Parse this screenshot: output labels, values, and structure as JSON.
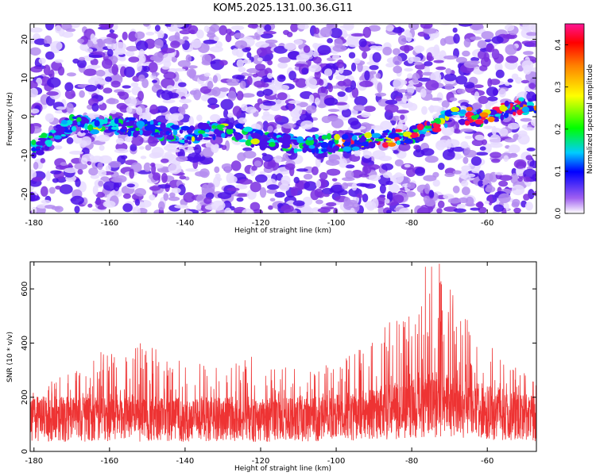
{
  "chart_data": [
    {
      "type": "heatmap",
      "title": "KOM5.2025.131.00.36.G11",
      "xlabel": "Height of straight line (km)",
      "ylabel": "Frequency (Hz)",
      "xlim": [
        -181,
        -47
      ],
      "ylim": [
        -25,
        24
      ],
      "xticks": [
        -180,
        -160,
        -140,
        -120,
        -100,
        -80,
        -60
      ],
      "xtick_labels": [
        "-180",
        "-160",
        "-140",
        "-120",
        "-100",
        "-80",
        "-60"
      ],
      "yticks": [
        -20,
        -10,
        0,
        10,
        20
      ],
      "ytick_labels": [
        "-20",
        "-10",
        "0",
        "10",
        "20"
      ],
      "colorbar": {
        "label": "Normalized spectral amplitude",
        "range": [
          0,
          0.45
        ],
        "ticks": [
          0,
          0.1,
          0.2,
          0.3,
          0.4
        ],
        "tick_labels": [
          "0.0",
          "0.1",
          "0.2",
          "0.3",
          "0.4"
        ],
        "colormap": [
          "#ffffff",
          "#8a2be2",
          "#0000ff",
          "#00ffff",
          "#00ff00",
          "#ffff00",
          "#ff8000",
          "#ff0000",
          "#ff1493"
        ]
      },
      "ridge": {
        "description_points_x": [
          -181,
          -170,
          -160,
          -150,
          -140,
          -130,
          -120,
          -110,
          -100,
          -90,
          -80,
          -70,
          -60,
          -50
        ],
        "description_points_y": [
          -9,
          -2,
          -2,
          -3,
          -5,
          -3,
          -6,
          -7,
          -7,
          -6,
          -5,
          0,
          0,
          3
        ],
        "peak_amplitude": 0.44
      }
    },
    {
      "type": "line",
      "xlabel": "Height of straight line (km)",
      "ylabel": "SNR (10 * v/v)",
      "xlim": [
        -181,
        -47
      ],
      "ylim": [
        0,
        700
      ],
      "xticks": [
        -180,
        -160,
        -140,
        -120,
        -100,
        -80,
        -60
      ],
      "xtick_labels": [
        "-180",
        "-160",
        "-140",
        "-120",
        "-100",
        "-80",
        "-60"
      ],
      "yticks": [
        0,
        200,
        400,
        600
      ],
      "ytick_labels": [
        "0",
        "200",
        "400",
        "600"
      ],
      "color": "#ee3333",
      "envelope": {
        "x": [
          -181,
          -170,
          -160,
          -150,
          -140,
          -130,
          -120,
          -110,
          -100,
          -95,
          -90,
          -85,
          -80,
          -76,
          -72,
          -68,
          -64,
          -60,
          -55,
          -50,
          -47
        ],
        "baseline": [
          120,
          120,
          120,
          120,
          115,
          120,
          115,
          120,
          125,
          130,
          140,
          150,
          160,
          170,
          175,
          165,
          155,
          145,
          135,
          125,
          120
        ],
        "max": [
          235,
          300,
          390,
          410,
          340,
          330,
          360,
          300,
          330,
          370,
          440,
          490,
          520,
          700,
          700,
          560,
          450,
          400,
          340,
          300,
          280
        ]
      }
    }
  ]
}
